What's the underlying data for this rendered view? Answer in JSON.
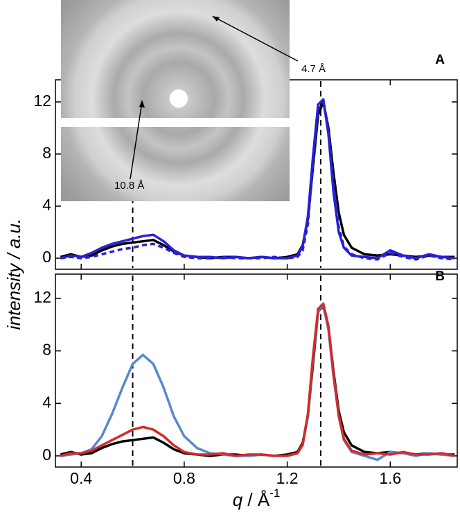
{
  "chart_data": [
    {
      "type": "line",
      "panel_label": "A",
      "ylabel": "intensity / a.u.",
      "x": [
        0.32,
        0.36,
        0.4,
        0.44,
        0.48,
        0.52,
        0.56,
        0.6,
        0.64,
        0.68,
        0.72,
        0.76,
        0.8,
        0.85,
        0.9,
        0.95,
        1.0,
        1.05,
        1.1,
        1.15,
        1.2,
        1.24,
        1.26,
        1.28,
        1.3,
        1.32,
        1.34,
        1.36,
        1.38,
        1.4,
        1.42,
        1.45,
        1.5,
        1.55,
        1.6,
        1.65,
        1.7,
        1.75,
        1.8,
        1.85
      ],
      "xlim": [
        0.3,
        1.86
      ],
      "ylim": [
        -0.85,
        13.7
      ],
      "xticks": [
        0.4,
        0.8,
        1.2,
        1.6
      ],
      "yticks": [
        0,
        4,
        8,
        12
      ],
      "xtick_labels": false,
      "vlines": [
        0.6,
        1.33
      ],
      "annotations": [
        "4.7 Å",
        "10.8 Å"
      ],
      "series": [
        {
          "color": "#000000",
          "dash": false,
          "values": [
            0.1,
            0.3,
            0.1,
            0.2,
            0.6,
            0.9,
            1.1,
            1.2,
            1.3,
            1.4,
            1.0,
            0.5,
            0.2,
            0.1,
            0.0,
            0.1,
            0.1,
            0.0,
            0.1,
            0.0,
            0.1,
            0.3,
            1.0,
            3.0,
            7.0,
            11.0,
            12.0,
            10.0,
            6.5,
            3.5,
            1.8,
            0.8,
            0.3,
            0.2,
            0.3,
            0.2,
            0.1,
            0.2,
            0.1,
            0.1
          ]
        },
        {
          "color": "#2a1fd6",
          "dash": false,
          "values": [
            0.0,
            0.2,
            0.1,
            0.4,
            0.8,
            1.1,
            1.3,
            1.5,
            1.7,
            1.8,
            1.3,
            0.6,
            0.2,
            0.1,
            0.1,
            0.0,
            0.1,
            0.0,
            0.1,
            0.0,
            0.0,
            0.2,
            0.9,
            3.2,
            7.8,
            11.8,
            12.2,
            9.5,
            5.0,
            2.0,
            0.8,
            0.2,
            0.1,
            0.0,
            0.6,
            0.2,
            0.0,
            0.3,
            0.1,
            0.0
          ]
        },
        {
          "color": "#2a1fd6",
          "dash": true,
          "values": [
            0.0,
            0.1,
            0.0,
            0.1,
            0.3,
            0.5,
            0.7,
            0.8,
            1.0,
            1.1,
            0.8,
            0.4,
            0.1,
            0.0,
            0.0,
            0.1,
            0.0,
            0.0,
            0.0,
            0.1,
            0.0,
            0.1,
            0.6,
            2.6,
            7.2,
            11.5,
            12.0,
            9.8,
            5.6,
            2.4,
            0.9,
            0.3,
            0.0,
            -0.1,
            0.4,
            0.1,
            -0.1,
            0.2,
            0.0,
            -0.1
          ]
        }
      ]
    },
    {
      "type": "line",
      "panel_label": "B",
      "xlabel": {
        "var": "q",
        "unit": " / Å",
        "exp": "-1"
      },
      "x": [
        0.32,
        0.36,
        0.4,
        0.44,
        0.48,
        0.52,
        0.56,
        0.6,
        0.64,
        0.68,
        0.72,
        0.76,
        0.8,
        0.85,
        0.9,
        0.95,
        1.0,
        1.05,
        1.1,
        1.15,
        1.2,
        1.24,
        1.26,
        1.28,
        1.3,
        1.32,
        1.34,
        1.36,
        1.38,
        1.4,
        1.42,
        1.45,
        1.5,
        1.55,
        1.6,
        1.65,
        1.7,
        1.75,
        1.8,
        1.85
      ],
      "xlim": [
        0.3,
        1.86
      ],
      "ylim": [
        -0.85,
        13.85
      ],
      "xticks": [
        0.4,
        0.8,
        1.2,
        1.6
      ],
      "yticks": [
        0,
        4,
        8,
        12
      ],
      "xtick_labels": true,
      "vlines": [
        0.6,
        1.33
      ],
      "series": [
        {
          "color": "#000000",
          "dash": false,
          "values": [
            0.1,
            0.3,
            0.1,
            0.2,
            0.6,
            0.9,
            1.1,
            1.2,
            1.3,
            1.4,
            1.0,
            0.5,
            0.2,
            0.1,
            0.0,
            0.1,
            0.1,
            0.0,
            0.1,
            0.0,
            0.1,
            0.3,
            1.0,
            3.0,
            7.0,
            11.0,
            11.4,
            9.8,
            6.4,
            3.4,
            1.8,
            0.8,
            0.3,
            0.2,
            0.3,
            0.2,
            0.1,
            0.2,
            0.1,
            0.1
          ]
        },
        {
          "color": "#5b87cf",
          "dash": false,
          "values": [
            0.0,
            0.1,
            0.2,
            0.5,
            1.5,
            3.2,
            5.2,
            7.0,
            7.7,
            7.0,
            5.2,
            3.0,
            1.5,
            0.6,
            0.2,
            0.1,
            0.0,
            0.0,
            0.1,
            0.0,
            0.0,
            0.2,
            0.8,
            3.0,
            7.4,
            11.0,
            11.5,
            9.6,
            6.0,
            3.0,
            1.2,
            0.3,
            0.0,
            -0.3,
            0.3,
            0.2,
            0.0,
            0.2,
            0.1,
            0.0
          ]
        },
        {
          "color": "#d42a2a",
          "dash": false,
          "values": [
            0.0,
            0.2,
            0.2,
            0.4,
            0.8,
            1.2,
            1.6,
            2.0,
            2.2,
            2.0,
            1.5,
            0.8,
            0.3,
            0.1,
            0.1,
            0.2,
            0.0,
            0.1,
            0.1,
            0.0,
            0.0,
            0.2,
            0.9,
            3.2,
            7.6,
            11.2,
            11.6,
            9.9,
            6.2,
            3.1,
            1.3,
            0.4,
            0.1,
            0.2,
            0.1,
            0.3,
            0.1,
            0.1,
            0.2,
            0.0
          ]
        }
      ]
    }
  ]
}
